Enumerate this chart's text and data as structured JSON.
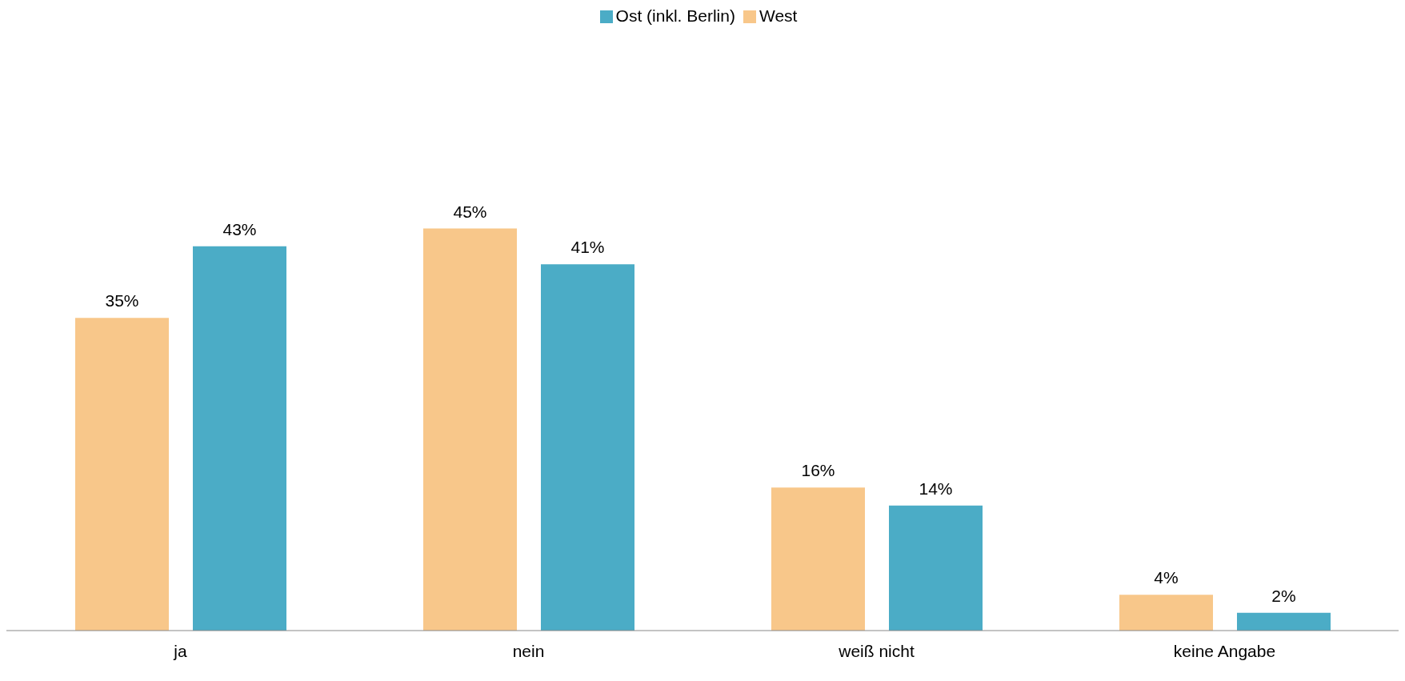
{
  "chart_data": {
    "type": "bar",
    "categories": [
      "ja",
      "nein",
      "weiß nicht",
      "keine Angabe"
    ],
    "series": [
      {
        "name": "West",
        "color": "#f8c78a",
        "values": [
          35,
          45,
          16,
          4
        ],
        "value_labels": [
          "35%",
          "45%",
          "16%",
          "4%"
        ]
      },
      {
        "name": "Ost (inkl. Berlin)",
        "color": "#4bacc6",
        "values": [
          43,
          41,
          14,
          2
        ],
        "value_labels": [
          "43%",
          "41%",
          "14%",
          "2%"
        ]
      }
    ],
    "legend": "top"
  }
}
